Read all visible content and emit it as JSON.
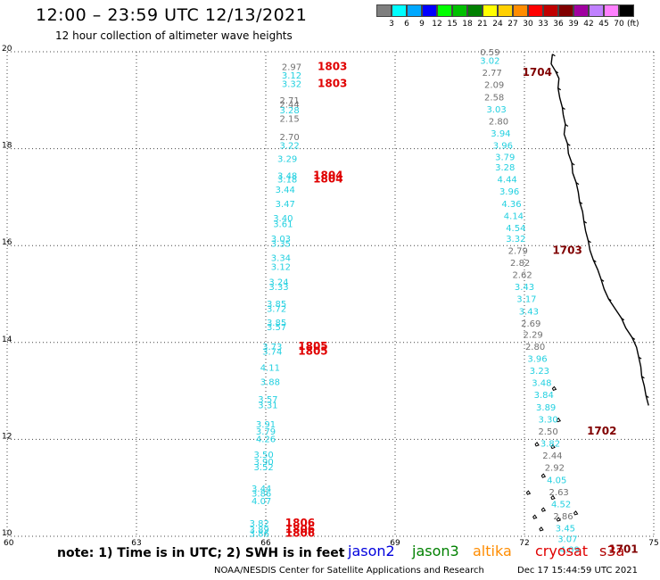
{
  "header": {
    "title": "12:00 – 23:59 UTC 12/13/2021",
    "subtitle": "12 hour collection of altimeter wave heights"
  },
  "legend": {
    "unit": "(ft)",
    "items": [
      {
        "label": "3",
        "color": "#7f7f7f"
      },
      {
        "label": "6",
        "color": "#00ffff"
      },
      {
        "label": "9",
        "color": "#00a8ff"
      },
      {
        "label": "12",
        "color": "#0000ff"
      },
      {
        "label": "15",
        "color": "#00ff00"
      },
      {
        "label": "18",
        "color": "#00c000"
      },
      {
        "label": "21",
        "color": "#008000"
      },
      {
        "label": "24",
        "color": "#ffff00"
      },
      {
        "label": "27",
        "color": "#ffd000"
      },
      {
        "label": "30",
        "color": "#ff8c00"
      },
      {
        "label": "33",
        "color": "#ff0000"
      },
      {
        "label": "36",
        "color": "#c00000"
      },
      {
        "label": "39",
        "color": "#800000"
      },
      {
        "label": "42",
        "color": "#a000a0"
      },
      {
        "label": "45",
        "color": "#c080ff"
      },
      {
        "label": "70",
        "color": "#ff80ff"
      },
      {
        "label": "",
        "color": "#000000"
      }
    ]
  },
  "map": {
    "lon_range": [
      60,
      75
    ],
    "lat_range": [
      10,
      20
    ],
    "lon_ticks": [
      "60",
      "63",
      "66",
      "69",
      "72",
      "75"
    ],
    "lat_ticks": [
      "10",
      "12",
      "14",
      "16",
      "18",
      "20"
    ],
    "grid": "dotted"
  },
  "colors": {
    "gray": "#707070",
    "cyan": "#22d0e0",
    "red": "#e00000",
    "darkred": "#800000"
  },
  "track_west": [
    {
      "lon": 66.6,
      "lat": 19.62,
      "v": "2.97",
      "c": "gray"
    },
    {
      "lon": 66.6,
      "lat": 19.45,
      "v": "3.12",
      "c": "cyan"
    },
    {
      "lon": 66.6,
      "lat": 19.27,
      "v": "3.32",
      "c": "cyan"
    },
    {
      "lon": 66.55,
      "lat": 18.93,
      "v": "2.71",
      "c": "gray"
    },
    {
      "lon": 66.55,
      "lat": 18.85,
      "v": "2.44",
      "c": "gray"
    },
    {
      "lon": 66.55,
      "lat": 18.73,
      "v": "3.28",
      "c": "cyan"
    },
    {
      "lon": 66.55,
      "lat": 18.55,
      "v": "2.15",
      "c": "gray"
    },
    {
      "lon": 66.55,
      "lat": 18.18,
      "v": "2.70",
      "c": "gray"
    },
    {
      "lon": 66.55,
      "lat": 18.0,
      "v": "3.22",
      "c": "cyan"
    },
    {
      "lon": 66.5,
      "lat": 17.73,
      "v": "3.29",
      "c": "cyan"
    },
    {
      "lon": 66.5,
      "lat": 17.38,
      "v": "3.48",
      "c": "cyan"
    },
    {
      "lon": 66.5,
      "lat": 17.3,
      "v": "3.18",
      "c": "cyan"
    },
    {
      "lon": 66.45,
      "lat": 17.09,
      "v": "3.44",
      "c": "cyan"
    },
    {
      "lon": 66.45,
      "lat": 16.8,
      "v": "3.47",
      "c": "cyan"
    },
    {
      "lon": 66.4,
      "lat": 16.5,
      "v": "3.40",
      "c": "cyan"
    },
    {
      "lon": 66.4,
      "lat": 16.38,
      "v": "3.61",
      "c": "cyan"
    },
    {
      "lon": 66.35,
      "lat": 16.08,
      "v": "3.03",
      "c": "cyan"
    },
    {
      "lon": 66.35,
      "lat": 15.98,
      "v": "3.35",
      "c": "cyan"
    },
    {
      "lon": 66.35,
      "lat": 15.68,
      "v": "3.34",
      "c": "cyan"
    },
    {
      "lon": 66.35,
      "lat": 15.5,
      "v": "3.12",
      "c": "cyan"
    },
    {
      "lon": 66.3,
      "lat": 15.18,
      "v": "3.24",
      "c": "cyan"
    },
    {
      "lon": 66.3,
      "lat": 15.08,
      "v": "3.33",
      "c": "cyan"
    },
    {
      "lon": 66.25,
      "lat": 14.73,
      "v": "3.85",
      "c": "cyan"
    },
    {
      "lon": 66.25,
      "lat": 14.63,
      "v": "3.72",
      "c": "cyan"
    },
    {
      "lon": 66.25,
      "lat": 14.35,
      "v": "3.85",
      "c": "cyan"
    },
    {
      "lon": 66.25,
      "lat": 14.25,
      "v": "3.57",
      "c": "cyan"
    },
    {
      "lon": 66.15,
      "lat": 13.85,
      "v": "3.73",
      "c": "cyan"
    },
    {
      "lon": 66.15,
      "lat": 13.75,
      "v": "3.74",
      "c": "cyan"
    },
    {
      "lon": 66.1,
      "lat": 13.42,
      "v": "4.11",
      "c": "cyan"
    },
    {
      "lon": 66.1,
      "lat": 13.12,
      "v": "3.88",
      "c": "cyan"
    },
    {
      "lon": 66.05,
      "lat": 12.76,
      "v": "3.57",
      "c": "cyan"
    },
    {
      "lon": 66.05,
      "lat": 12.64,
      "v": "3.31",
      "c": "cyan"
    },
    {
      "lon": 66.0,
      "lat": 12.25,
      "v": "3.91",
      "c": "cyan"
    },
    {
      "lon": 66.0,
      "lat": 12.1,
      "v": "3.79",
      "c": "cyan"
    },
    {
      "lon": 66.0,
      "lat": 11.94,
      "v": "4.26",
      "c": "cyan"
    },
    {
      "lon": 65.95,
      "lat": 11.62,
      "v": "3.50",
      "c": "cyan"
    },
    {
      "lon": 65.95,
      "lat": 11.47,
      "v": "3.90",
      "c": "cyan"
    },
    {
      "lon": 65.95,
      "lat": 11.36,
      "v": "3.52",
      "c": "cyan"
    },
    {
      "lon": 65.9,
      "lat": 10.92,
      "v": "3.44",
      "c": "cyan"
    },
    {
      "lon": 65.9,
      "lat": 10.82,
      "v": "3.86",
      "c": "cyan"
    },
    {
      "lon": 65.9,
      "lat": 10.66,
      "v": "4.07",
      "c": "cyan"
    },
    {
      "lon": 65.85,
      "lat": 10.2,
      "v": "3.82",
      "c": "cyan"
    },
    {
      "lon": 65.85,
      "lat": 10.07,
      "v": "3.89",
      "c": "cyan"
    },
    {
      "lon": 65.85,
      "lat": 9.99,
      "v": "3.86",
      "c": "cyan"
    }
  ],
  "track_east": [
    {
      "lon": 71.2,
      "lat": 19.93,
      "v": "0.59",
      "c": "gray"
    },
    {
      "lon": 71.2,
      "lat": 19.75,
      "v": "3.02",
      "c": "cyan"
    },
    {
      "lon": 71.25,
      "lat": 19.5,
      "v": "2.77",
      "c": "gray"
    },
    {
      "lon": 71.3,
      "lat": 19.25,
      "v": "2.09",
      "c": "gray"
    },
    {
      "lon": 71.3,
      "lat": 19.0,
      "v": "2.58",
      "c": "gray"
    },
    {
      "lon": 71.35,
      "lat": 18.75,
      "v": "3.03",
      "c": "cyan"
    },
    {
      "lon": 71.4,
      "lat": 18.5,
      "v": "2.80",
      "c": "gray"
    },
    {
      "lon": 71.45,
      "lat": 18.25,
      "v": "3.94",
      "c": "cyan"
    },
    {
      "lon": 71.5,
      "lat": 18.0,
      "v": "3.96",
      "c": "cyan"
    },
    {
      "lon": 71.55,
      "lat": 17.76,
      "v": "3.79",
      "c": "cyan"
    },
    {
      "lon": 71.55,
      "lat": 17.55,
      "v": "3.28",
      "c": "cyan"
    },
    {
      "lon": 71.6,
      "lat": 17.3,
      "v": "4.44",
      "c": "cyan"
    },
    {
      "lon": 71.65,
      "lat": 17.05,
      "v": "3.96",
      "c": "cyan"
    },
    {
      "lon": 71.7,
      "lat": 16.8,
      "v": "4.36",
      "c": "cyan"
    },
    {
      "lon": 71.75,
      "lat": 16.55,
      "v": "4.14",
      "c": "cyan"
    },
    {
      "lon": 71.8,
      "lat": 16.3,
      "v": "4.54",
      "c": "cyan"
    },
    {
      "lon": 71.8,
      "lat": 16.08,
      "v": "3.32",
      "c": "cyan"
    },
    {
      "lon": 71.85,
      "lat": 15.83,
      "v": "2.79",
      "c": "gray"
    },
    {
      "lon": 71.9,
      "lat": 15.58,
      "v": "2.82",
      "c": "gray"
    },
    {
      "lon": 71.95,
      "lat": 15.33,
      "v": "2.62",
      "c": "gray"
    },
    {
      "lon": 72.0,
      "lat": 15.08,
      "v": "3.43",
      "c": "cyan"
    },
    {
      "lon": 72.05,
      "lat": 14.83,
      "v": "3.17",
      "c": "cyan"
    },
    {
      "lon": 72.1,
      "lat": 14.58,
      "v": "3.43",
      "c": "cyan"
    },
    {
      "lon": 72.15,
      "lat": 14.33,
      "v": "2.69",
      "c": "gray"
    },
    {
      "lon": 72.2,
      "lat": 14.1,
      "v": "2.29",
      "c": "gray"
    },
    {
      "lon": 72.25,
      "lat": 13.85,
      "v": "2.80",
      "c": "gray"
    },
    {
      "lon": 72.3,
      "lat": 13.6,
      "v": "3.96",
      "c": "cyan"
    },
    {
      "lon": 72.35,
      "lat": 13.35,
      "v": "3.23",
      "c": "cyan"
    },
    {
      "lon": 72.4,
      "lat": 13.1,
      "v": "3.48",
      "c": "cyan"
    },
    {
      "lon": 72.45,
      "lat": 12.85,
      "v": "3.84",
      "c": "cyan"
    },
    {
      "lon": 72.5,
      "lat": 12.6,
      "v": "3.89",
      "c": "cyan"
    },
    {
      "lon": 72.55,
      "lat": 12.35,
      "v": "3.30",
      "c": "cyan"
    },
    {
      "lon": 72.55,
      "lat": 12.1,
      "v": "2.50",
      "c": "gray"
    },
    {
      "lon": 72.6,
      "lat": 11.85,
      "v": "3.82",
      "c": "cyan"
    },
    {
      "lon": 72.65,
      "lat": 11.6,
      "v": "2.44",
      "c": "gray"
    },
    {
      "lon": 72.7,
      "lat": 11.35,
      "v": "2.92",
      "c": "gray"
    },
    {
      "lon": 72.75,
      "lat": 11.1,
      "v": "4.05",
      "c": "cyan"
    },
    {
      "lon": 72.8,
      "lat": 10.85,
      "v": "2.63",
      "c": "gray"
    },
    {
      "lon": 72.85,
      "lat": 10.6,
      "v": "4.52",
      "c": "cyan"
    },
    {
      "lon": 72.9,
      "lat": 10.35,
      "v": "2.86",
      "c": "gray"
    },
    {
      "lon": 72.95,
      "lat": 10.1,
      "v": "3.45",
      "c": "cyan"
    },
    {
      "lon": 73.0,
      "lat": 9.88,
      "v": "3.07",
      "c": "cyan"
    },
    {
      "lon": 73.05,
      "lat": 9.66,
      "v": "4.09",
      "c": "cyan"
    }
  ],
  "time_labels": [
    {
      "lon": 67.2,
      "lat": 19.62,
      "t": "1803",
      "c": "red"
    },
    {
      "lon": 67.2,
      "lat": 19.27,
      "t": "1803",
      "c": "red"
    },
    {
      "lon": 67.1,
      "lat": 17.38,
      "t": "1804",
      "c": "red"
    },
    {
      "lon": 67.1,
      "lat": 17.3,
      "t": "1804",
      "c": "red"
    },
    {
      "lon": 66.75,
      "lat": 13.85,
      "t": "1805",
      "c": "red"
    },
    {
      "lon": 66.75,
      "lat": 13.75,
      "t": "1805",
      "c": "red"
    },
    {
      "lon": 66.45,
      "lat": 10.2,
      "t": "1806",
      "c": "red"
    },
    {
      "lon": 66.45,
      "lat": 10.07,
      "t": "1806",
      "c": "red"
    },
    {
      "lon": 66.45,
      "lat": 9.99,
      "t": "1806",
      "c": "red"
    },
    {
      "lon": 71.95,
      "lat": 19.5,
      "t": "1704",
      "c": "darkred"
    },
    {
      "lon": 72.65,
      "lat": 15.83,
      "t": "1703",
      "c": "darkred"
    },
    {
      "lon": 73.45,
      "lat": 12.1,
      "t": "1702",
      "c": "darkred"
    },
    {
      "lon": 73.95,
      "lat": 9.66,
      "t": "1701",
      "c": "darkred"
    }
  ],
  "coastline": [
    [
      72.65,
      19.95
    ],
    [
      72.62,
      19.75
    ],
    [
      72.72,
      19.6
    ],
    [
      72.8,
      19.45
    ],
    [
      72.78,
      19.25
    ],
    [
      72.82,
      19.05
    ],
    [
      72.88,
      18.85
    ],
    [
      72.9,
      18.7
    ],
    [
      72.95,
      18.5
    ],
    [
      72.92,
      18.3
    ],
    [
      73.0,
      18.1
    ],
    [
      73.02,
      17.9
    ],
    [
      73.1,
      17.7
    ],
    [
      73.12,
      17.5
    ],
    [
      73.2,
      17.3
    ],
    [
      73.25,
      17.1
    ],
    [
      73.28,
      16.9
    ],
    [
      73.35,
      16.7
    ],
    [
      73.38,
      16.5
    ],
    [
      73.42,
      16.3
    ],
    [
      73.48,
      16.1
    ],
    [
      73.52,
      15.9
    ],
    [
      73.6,
      15.7
    ],
    [
      73.7,
      15.5
    ],
    [
      73.78,
      15.3
    ],
    [
      73.85,
      15.1
    ],
    [
      73.95,
      14.9
    ],
    [
      74.1,
      14.7
    ],
    [
      74.25,
      14.5
    ],
    [
      74.35,
      14.3
    ],
    [
      74.5,
      14.1
    ],
    [
      74.6,
      13.9
    ],
    [
      74.65,
      13.7
    ],
    [
      74.7,
      13.5
    ],
    [
      74.72,
      13.3
    ],
    [
      74.78,
      13.1
    ],
    [
      74.82,
      12.9
    ],
    [
      74.88,
      12.7
    ]
  ],
  "islands": [
    [
      72.65,
      13.05
    ],
    [
      72.75,
      12.4
    ],
    [
      72.62,
      11.85
    ],
    [
      72.25,
      11.9
    ],
    [
      72.4,
      11.25
    ],
    [
      72.05,
      10.9
    ],
    [
      72.4,
      10.55
    ],
    [
      72.62,
      10.8
    ],
    [
      72.75,
      10.35
    ],
    [
      73.15,
      10.48
    ],
    [
      72.2,
      10.4
    ],
    [
      72.35,
      10.15
    ]
  ],
  "footer": {
    "note": "note: 1) Time is in UTC; 2) SWH is in feet",
    "satellites": [
      {
        "name": "jason2",
        "color": "#0000dd"
      },
      {
        "name": "jason3",
        "color": "#008000"
      },
      {
        "name": "altika",
        "color": "#ff8c00"
      },
      {
        "name": "cryosat",
        "color": "#e00000"
      },
      {
        "name": "s3a",
        "color": "#b00000"
      }
    ],
    "credit": "NOAA/NESDIS Center for Satellite Applications and Research",
    "timestamp": "Dec 17 15:44:59 UTC 2021"
  }
}
